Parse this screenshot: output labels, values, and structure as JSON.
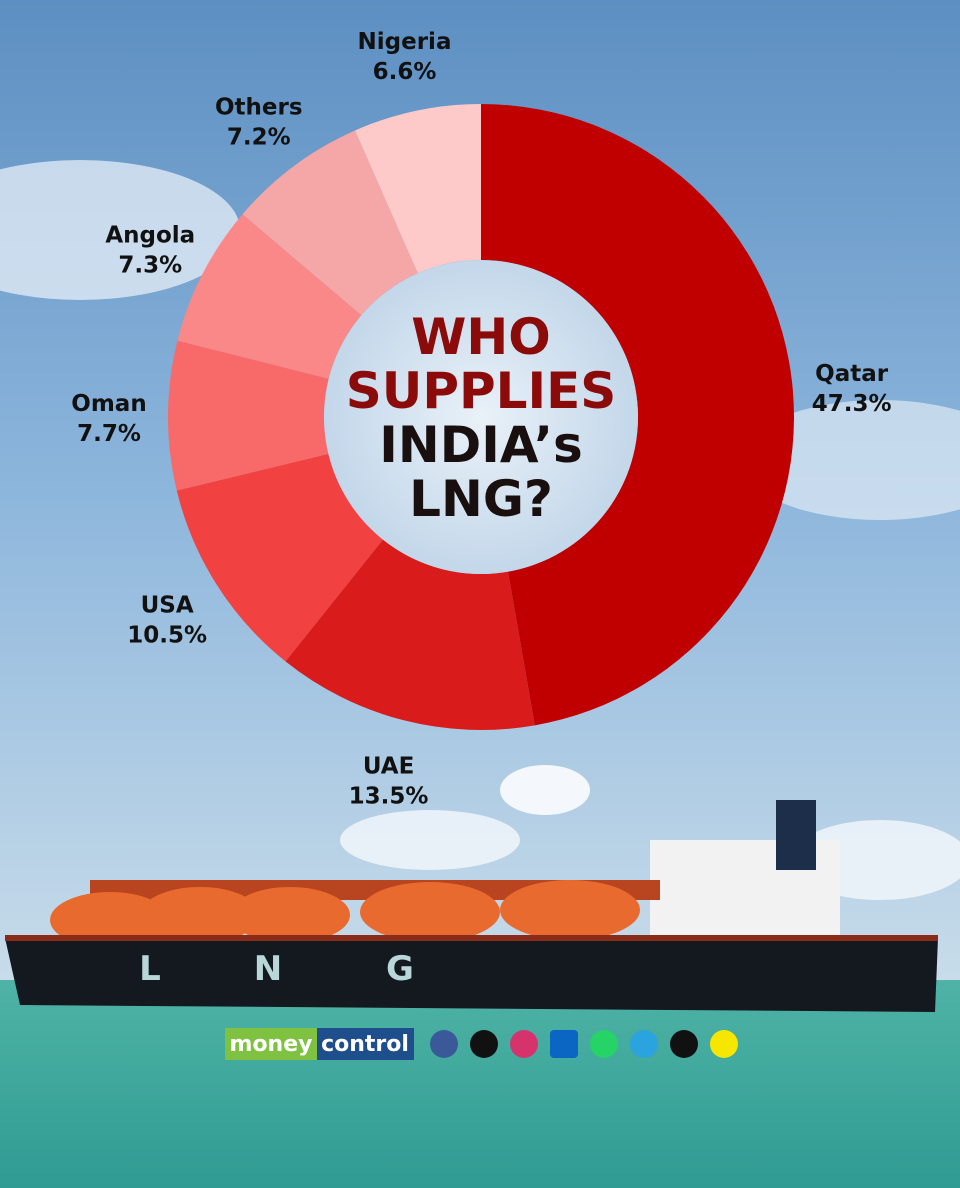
{
  "chart_data": {
    "type": "donut",
    "title_lines": [
      "WHO",
      "SUPPLIES",
      "INDIA’s",
      "LNG?"
    ],
    "categories": [
      "Qatar",
      "UAE",
      "USA",
      "Oman",
      "Angola",
      "Others",
      "Nigeria"
    ],
    "values": [
      47.3,
      13.5,
      10.5,
      7.7,
      7.3,
      7.2,
      6.6
    ],
    "value_labels": [
      "47.3%",
      "13.5%",
      "10.5%",
      "7.7%",
      "7.3%",
      "7.2%",
      "6.6%"
    ],
    "colors": [
      "#c00000",
      "#d91b1b",
      "#f24141",
      "#f86a6a",
      "#fa8888",
      "#f5a6a6",
      "#fdc9c9"
    ]
  },
  "ship_marking": [
    "L",
    "N",
    "G"
  ],
  "logo": {
    "part1": "money",
    "part2": "control"
  }
}
